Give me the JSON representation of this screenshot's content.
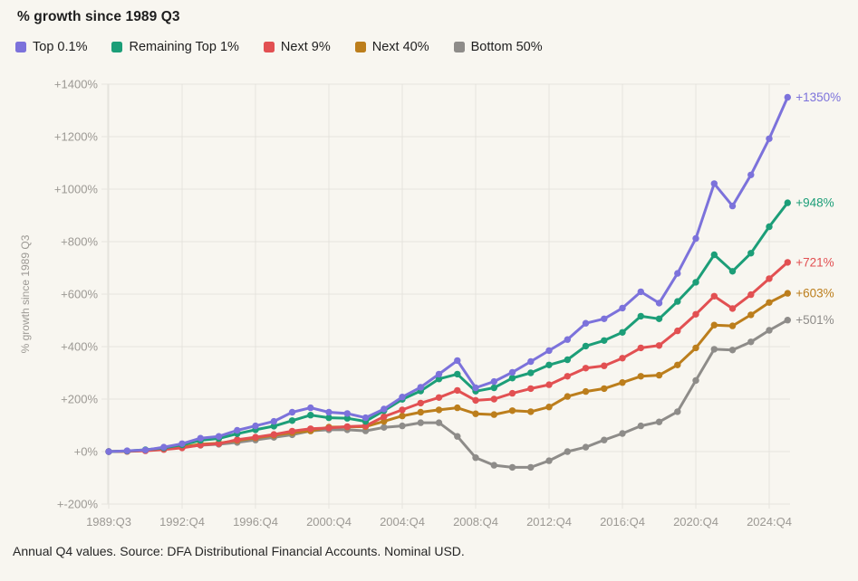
{
  "title": "% growth since 1989 Q3",
  "footer": "Annual Q4 values. Source: DFA Distributional Financial Accounts. Nominal USD.",
  "colors": {
    "background": "#F8F6F0",
    "gridline": "#E6E4DE",
    "axis_text": "#9C9994",
    "title_text": "#1E1E1E",
    "footer_text": "#262626"
  },
  "legend": {
    "items": [
      {
        "label": "Top 0.1%",
        "color": "#7C72DB"
      },
      {
        "label": "Remaining Top 1%",
        "color": "#1C9E78"
      },
      {
        "label": "Next 9%",
        "color": "#E25052"
      },
      {
        "label": "Next 40%",
        "color": "#BC7E1C"
      },
      {
        "label": "Bottom 50%",
        "color": "#8E8C89"
      }
    ]
  },
  "chart_data": {
    "type": "line",
    "title": "% growth since 1989 Q3",
    "ylabel": "% growth since 1989 Q3",
    "xlabel": "",
    "grid": true,
    "legend_position": "top",
    "ylim": [
      -200,
      1400
    ],
    "y_ticks": [
      1400,
      1200,
      1000,
      800,
      600,
      400,
      200,
      0,
      -200
    ],
    "y_tick_labels": [
      "+1400%",
      "+1200%",
      "+1000%",
      "+800%",
      "+600%",
      "+400%",
      "+200%",
      "+0%",
      "+-200%"
    ],
    "x": [
      "1989:Q3",
      "1989:Q4",
      "1990:Q4",
      "1991:Q4",
      "1992:Q4",
      "1993:Q4",
      "1994:Q4",
      "1995:Q4",
      "1996:Q4",
      "1997:Q4",
      "1998:Q4",
      "1999:Q4",
      "2000:Q4",
      "2001:Q4",
      "2002:Q4",
      "2003:Q4",
      "2004:Q4",
      "2005:Q4",
      "2006:Q4",
      "2007:Q4",
      "2008:Q4",
      "2009:Q4",
      "2010:Q4",
      "2011:Q4",
      "2012:Q4",
      "2013:Q4",
      "2014:Q4",
      "2015:Q4",
      "2016:Q4",
      "2017:Q4",
      "2018:Q4",
      "2019:Q4",
      "2020:Q4",
      "2021:Q4",
      "2022:Q4",
      "2023:Q4",
      "2024:Q4",
      "2025:Q2"
    ],
    "x_tick_indices": [
      0,
      4,
      8,
      12,
      16,
      20,
      24,
      28,
      32,
      36
    ],
    "x_tick_labels": [
      "1989:Q3",
      "1992:Q4",
      "1996:Q4",
      "2000:Q4",
      "2004:Q4",
      "2008:Q4",
      "2012:Q4",
      "2016:Q4",
      "2020:Q4",
      "2024:Q4"
    ],
    "series": [
      {
        "name": "Top 0.1%",
        "color": "#7C72DB",
        "end_label": "+1350%",
        "values": [
          0,
          3,
          6,
          17,
          30,
          51,
          58,
          81,
          98,
          115,
          150,
          167,
          150,
          145,
          129,
          162,
          208,
          245,
          295,
          347,
          243,
          267,
          302,
          343,
          385,
          427,
          489,
          506,
          547,
          609,
          566,
          679,
          812,
          1021,
          936,
          1054,
          1192,
          1350
        ]
      },
      {
        "name": "Remaining Top 1%",
        "color": "#1C9E78",
        "end_label": "+948%",
        "values": [
          0,
          2,
          7,
          14,
          26,
          43,
          50,
          68,
          83,
          97,
          118,
          139,
          129,
          127,
          115,
          156,
          199,
          231,
          277,
          295,
          230,
          243,
          280,
          300,
          330,
          350,
          402,
          423,
          454,
          516,
          506,
          572,
          645,
          750,
          687,
          756,
          857,
          948
        ]
      },
      {
        "name": "Next 9%",
        "color": "#E25052",
        "end_label": "+721%",
        "values": [
          0,
          1,
          3,
          8,
          14,
          25,
          30,
          45,
          55,
          65,
          78,
          87,
          90,
          95,
          98,
          133,
          159,
          185,
          206,
          233,
          195,
          200,
          222,
          240,
          255,
          287,
          318,
          327,
          356,
          395,
          404,
          460,
          523,
          592,
          545,
          598,
          659,
          721
        ]
      },
      {
        "name": "Next 40%",
        "color": "#BC7E1C",
        "end_label": "+603%",
        "values": [
          0,
          1,
          4,
          10,
          18,
          28,
          32,
          42,
          52,
          62,
          72,
          79,
          93,
          94,
          95,
          115,
          136,
          150,
          159,
          167,
          144,
          141,
          156,
          152,
          170,
          210,
          229,
          240,
          263,
          287,
          291,
          330,
          395,
          482,
          479,
          521,
          568,
          603
        ]
      },
      {
        "name": "Bottom 50%",
        "color": "#8E8C89",
        "end_label": "+501%",
        "values": [
          0,
          2,
          5,
          11,
          17,
          24,
          28,
          35,
          44,
          54,
          64,
          79,
          83,
          83,
          79,
          92,
          98,
          110,
          110,
          58,
          -23,
          -52,
          -60,
          -60,
          -35,
          0,
          17,
          44,
          69,
          98,
          113,
          152,
          271,
          390,
          387,
          418,
          462,
          501
        ]
      }
    ]
  }
}
